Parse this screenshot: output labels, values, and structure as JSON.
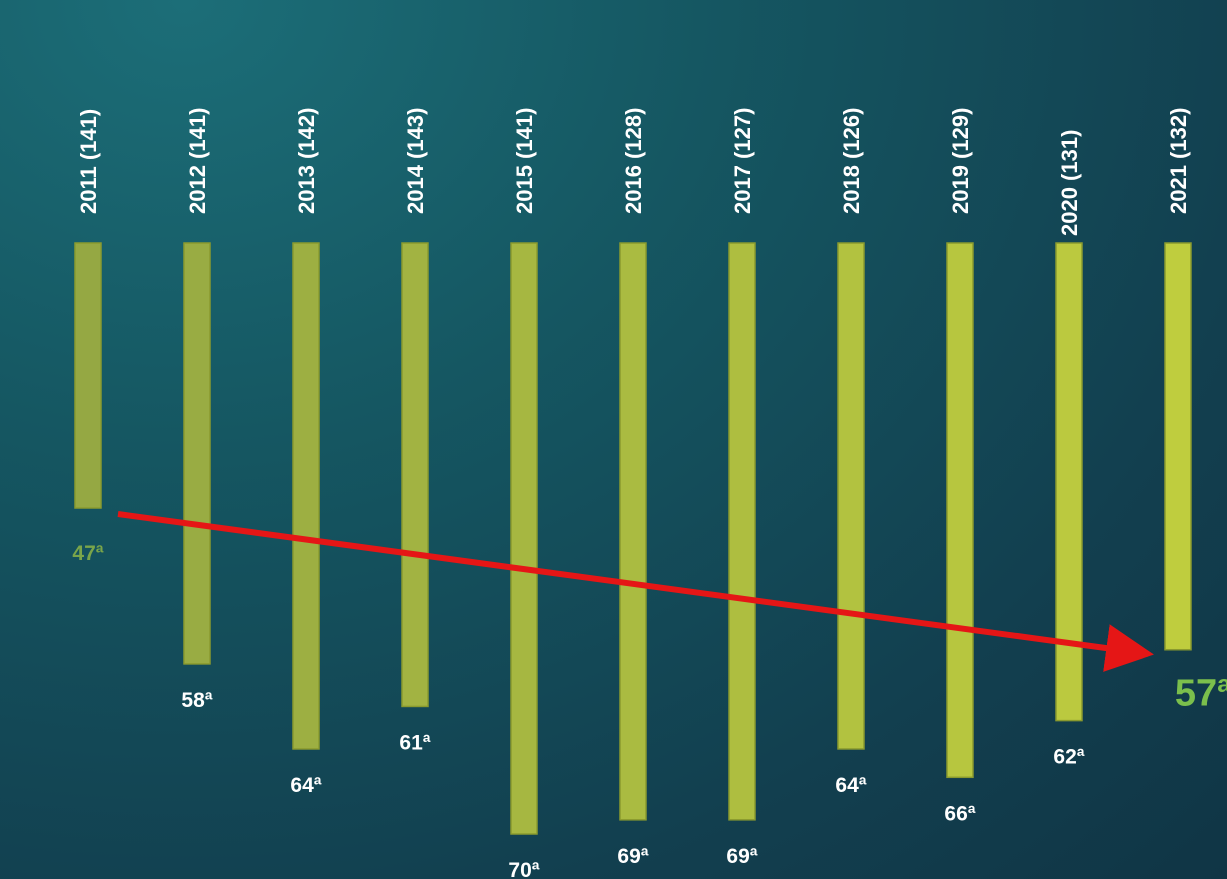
{
  "chart_data": {
    "type": "bar",
    "categories": [
      "2011 (141)",
      "2012 (141)",
      "2013 (142)",
      "2014 (143)",
      "2015 (141)",
      "2016 (128)",
      "2017 (127)",
      "2018 (126)",
      "2019 (129)",
      "2020 (131)",
      "2021 (132)"
    ],
    "values": [
      47,
      58,
      64,
      61,
      70,
      69,
      69,
      64,
      66,
      62,
      57
    ],
    "value_labels": [
      "47ª",
      "58ª",
      "64ª",
      "61ª",
      "70ª",
      "69ª",
      "69ª",
      "64ª",
      "66ª",
      "62ª",
      "57ª"
    ],
    "ylim": [
      20,
      72
    ],
    "orientation": "bars hang downward from top; longer bar = worse ranking",
    "trend_arrow": {
      "from": "2011 (141)",
      "to": "2021 (132)",
      "color": "#e51616"
    },
    "colors": {
      "bar_start": "#95a843",
      "bar_end": "#bfcd3e",
      "first_value_label": "#7aa54a",
      "final_value_label": "#7bbf4c",
      "value_label": "#ffffff",
      "category_label": "#ffffff"
    },
    "grid": false,
    "legend": "none"
  }
}
